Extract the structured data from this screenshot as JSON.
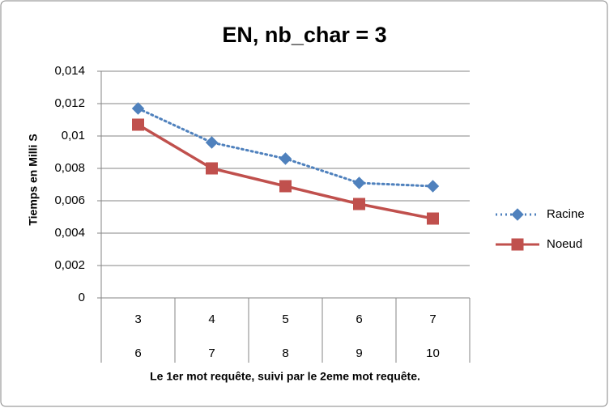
{
  "chart_data": {
    "type": "line",
    "title": "EN, nb_char = 3",
    "y_label": "Tiemps en Milli S",
    "x_label": "Le 1er mot requête, suivi par le 2eme mot requête.",
    "categories": [
      [
        "3",
        "6"
      ],
      [
        "4",
        "7"
      ],
      [
        "5",
        "8"
      ],
      [
        "6",
        "9"
      ],
      [
        "7",
        "10"
      ]
    ],
    "series": [
      {
        "name": "Racine",
        "color": "#4f81bd",
        "line_style": "dotted",
        "marker": "diamond",
        "values": [
          0.0117,
          0.0096,
          0.0086,
          0.0071,
          0.0069
        ]
      },
      {
        "name": "Noeud",
        "color": "#c0504d",
        "line_style": "solid",
        "marker": "square",
        "values": [
          0.0107,
          0.008,
          0.0069,
          0.0058,
          0.0049
        ]
      }
    ],
    "ylim": [
      0,
      0.014
    ],
    "yticks": [
      0,
      {
        "value": 0.002,
        "label": "0,002"
      },
      {
        "value": 0.004,
        "label": "0,004"
      },
      {
        "value": 0.006,
        "label": "0,006"
      },
      {
        "value": 0.008,
        "label": "0,008"
      },
      {
        "value": 0.01,
        "label": "0,01"
      },
      {
        "value": 0.012,
        "label": "0,012"
      },
      {
        "value": 0.014,
        "label": "0,014"
      }
    ],
    "grid": true,
    "legend": "right"
  }
}
